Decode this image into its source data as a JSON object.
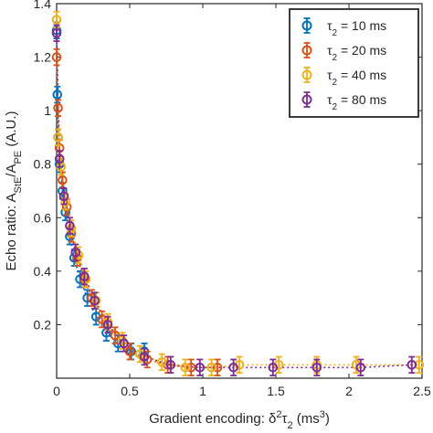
{
  "chart_data": {
    "type": "scatter",
    "xlabel": "Gradient encoding: δ²τ₂ (ms³)",
    "ylabel": "Echo ratio: A_StE/A_PE (A.U.)",
    "xlim": [
      0,
      2.5
    ],
    "ylim": [
      0,
      1.4
    ],
    "xticks": [
      "0",
      "0.5",
      "1",
      "1.5",
      "2",
      "2.5"
    ],
    "xtick_values": [
      0,
      0.5,
      1,
      1.5,
      2,
      2.5
    ],
    "yticks": [
      "0.2",
      "0.4",
      "0.6",
      "0.8",
      "1",
      "1.2",
      "1.4"
    ],
    "ytick_values": [
      0.2,
      0.4,
      0.6,
      0.8,
      1.0,
      1.2,
      1.4
    ],
    "grid": false,
    "legend_position": "top-right",
    "marker": "circle-open-with-errorbars",
    "fit_line": "dotted",
    "series": [
      {
        "name": "τ2 = 10 ms",
        "color": "#0072BD",
        "points": [
          [
            0.0,
            1.3,
            0.03
          ],
          [
            0.005,
            1.06,
            0.03
          ],
          [
            0.01,
            0.9,
            0.03
          ],
          [
            0.02,
            0.8,
            0.03
          ],
          [
            0.04,
            0.7,
            0.03
          ],
          [
            0.06,
            0.62,
            0.03
          ],
          [
            0.09,
            0.53,
            0.03
          ],
          [
            0.12,
            0.45,
            0.03
          ],
          [
            0.16,
            0.37,
            0.03
          ],
          [
            0.21,
            0.3,
            0.03
          ],
          [
            0.27,
            0.23,
            0.03
          ],
          [
            0.34,
            0.17,
            0.03
          ],
          [
            0.42,
            0.13,
            0.03
          ],
          [
            0.51,
            0.1,
            0.03
          ],
          [
            0.6,
            0.1,
            0.03
          ]
        ]
      },
      {
        "name": "τ2 = 20 ms",
        "color": "#D95319",
        "points": [
          [
            0.0,
            1.2,
            0.03
          ],
          [
            0.01,
            1.01,
            0.03
          ],
          [
            0.02,
            0.86,
            0.03
          ],
          [
            0.04,
            0.74,
            0.03
          ],
          [
            0.07,
            0.64,
            0.03
          ],
          [
            0.1,
            0.54,
            0.03
          ],
          [
            0.14,
            0.45,
            0.03
          ],
          [
            0.19,
            0.37,
            0.03
          ],
          [
            0.24,
            0.3,
            0.03
          ],
          [
            0.31,
            0.22,
            0.03
          ],
          [
            0.4,
            0.16,
            0.03
          ],
          [
            0.5,
            0.1,
            0.03
          ],
          [
            0.62,
            0.07,
            0.03
          ],
          [
            0.76,
            0.05,
            0.03
          ],
          [
            0.92,
            0.04,
            0.03
          ],
          [
            1.1,
            0.04,
            0.03
          ]
        ]
      },
      {
        "name": "τ2 = 40 ms",
        "color": "#EDB120",
        "points": [
          [
            0.0,
            1.34,
            0.03
          ],
          [
            0.01,
            0.9,
            0.03
          ],
          [
            0.03,
            0.79,
            0.03
          ],
          [
            0.06,
            0.66,
            0.03
          ],
          [
            0.1,
            0.56,
            0.03
          ],
          [
            0.15,
            0.46,
            0.03
          ],
          [
            0.2,
            0.37,
            0.03
          ],
          [
            0.27,
            0.29,
            0.03
          ],
          [
            0.35,
            0.21,
            0.03
          ],
          [
            0.45,
            0.14,
            0.03
          ],
          [
            0.57,
            0.09,
            0.03
          ],
          [
            0.72,
            0.06,
            0.03
          ],
          [
            0.88,
            0.04,
            0.03
          ],
          [
            1.06,
            0.04,
            0.03
          ],
          [
            1.25,
            0.05,
            0.03
          ],
          [
            1.52,
            0.05,
            0.03
          ],
          [
            1.78,
            0.05,
            0.03
          ],
          [
            2.05,
            0.05,
            0.03
          ],
          [
            2.48,
            0.05,
            0.03
          ]
        ]
      },
      {
        "name": "τ2 = 80 ms",
        "color": "#7E2F8E",
        "points": [
          [
            0.0,
            1.29,
            0.03
          ],
          [
            0.02,
            0.82,
            0.03
          ],
          [
            0.05,
            0.68,
            0.03
          ],
          [
            0.09,
            0.57,
            0.03
          ],
          [
            0.13,
            0.47,
            0.03
          ],
          [
            0.19,
            0.38,
            0.03
          ],
          [
            0.26,
            0.29,
            0.03
          ],
          [
            0.35,
            0.2,
            0.03
          ],
          [
            0.46,
            0.13,
            0.03
          ],
          [
            0.6,
            0.08,
            0.03
          ],
          [
            0.78,
            0.05,
            0.03
          ],
          [
            0.98,
            0.04,
            0.03
          ],
          [
            1.21,
            0.04,
            0.03
          ],
          [
            1.48,
            0.04,
            0.03
          ],
          [
            1.78,
            0.04,
            0.03
          ],
          [
            2.08,
            0.04,
            0.03
          ],
          [
            2.43,
            0.05,
            0.03
          ]
        ]
      }
    ]
  }
}
